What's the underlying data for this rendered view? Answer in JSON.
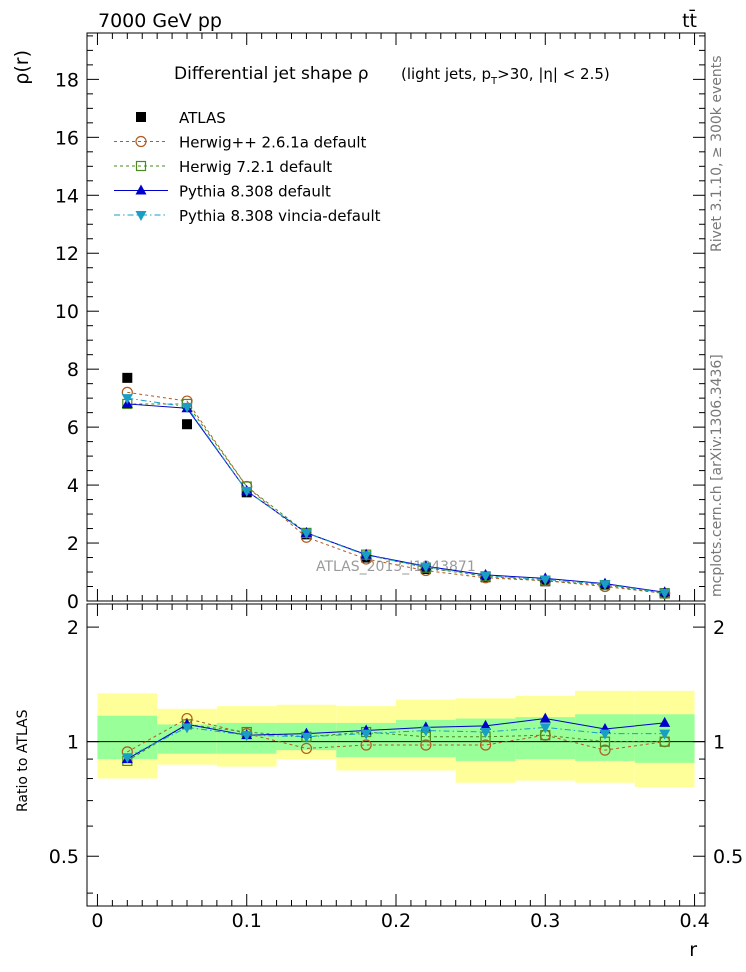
{
  "header": {
    "left": "7000 GeV pp",
    "right": "tt̄"
  },
  "side_labels": {
    "rivet": "Rivet 3.1.10, ≥ 300k events",
    "mcplots": "mcplots.cern.ch [arXiv:1306.3436]"
  },
  "watermark": "ATLAS_2013_I1243871",
  "chart_data": [
    {
      "type": "scatter",
      "title": "Differential jet shape  ρ",
      "title_detail": "(light jets, p",
      "title_sub": "T",
      "title_detail2": ">30, |η| < 2.5)",
      "ylabel": "ρ(r)",
      "xlabel": "r",
      "xlim": [
        -0.007,
        0.407
      ],
      "ylim": [
        0,
        19.6
      ],
      "yticks": [
        0,
        2,
        4,
        6,
        8,
        10,
        12,
        14,
        16,
        18
      ],
      "ytick_labels": [
        "0",
        "2",
        "4",
        "6",
        "8",
        "10",
        "12",
        "14",
        "16",
        "18"
      ],
      "x": [
        0.02,
        0.06,
        0.1,
        0.14,
        0.18,
        0.22,
        0.26,
        0.3,
        0.34,
        0.38
      ],
      "legend_position": "top-left",
      "series": [
        {
          "name": "ATLAS",
          "color": "#000000",
          "marker": "square-filled",
          "line": "none",
          "values": [
            7.7,
            6.1,
            3.75,
            2.3,
            1.5,
            1.1,
            0.82,
            0.68,
            0.55,
            0.27
          ]
        },
        {
          "name": "Herwig++ 2.6.1a default",
          "color": "#b35a1f",
          "marker": "circle-open",
          "line": "dashed",
          "values": [
            7.2,
            6.9,
            3.95,
            2.2,
            1.45,
            1.05,
            0.8,
            0.7,
            0.5,
            0.26
          ]
        },
        {
          "name": "Herwig 7.2.1 default",
          "color": "#4a8a1e",
          "marker": "square-open",
          "line": "dashed",
          "values": [
            6.8,
            6.8,
            3.95,
            2.35,
            1.6,
            1.15,
            0.85,
            0.7,
            0.55,
            0.26
          ]
        },
        {
          "name": "Pythia 8.308 default",
          "color": "#0000cc",
          "marker": "triangle-up",
          "line": "solid",
          "values": [
            6.8,
            6.65,
            3.8,
            2.35,
            1.6,
            1.2,
            0.9,
            0.78,
            0.6,
            0.3
          ]
        },
        {
          "name": "Pythia 8.308 vincia-default",
          "color": "#1a9ec4",
          "marker": "triangle-down",
          "line": "dashdot",
          "values": [
            7.0,
            6.7,
            3.8,
            2.35,
            1.58,
            1.18,
            0.87,
            0.74,
            0.58,
            0.28
          ]
        }
      ]
    },
    {
      "type": "scatter",
      "ylabel": "Ratio to ATLAS",
      "xlabel": "r",
      "xlim": [
        -0.007,
        0.407
      ],
      "ylim": [
        0.37,
        2.3
      ],
      "yticks": [
        0.5,
        1,
        2
      ],
      "ytick_labels": [
        "0.5",
        "1",
        "2"
      ],
      "xticks": [
        0,
        0.1,
        0.2,
        0.3,
        0.4
      ],
      "xtick_labels": [
        "0",
        "0.1",
        "0.2",
        "0.3",
        "0.4"
      ],
      "bin_edges": [
        0,
        0.04,
        0.08,
        0.12,
        0.16,
        0.2,
        0.24,
        0.28,
        0.32,
        0.36,
        0.4
      ],
      "band_outer_low": [
        0.8,
        0.87,
        0.86,
        0.9,
        0.84,
        0.84,
        0.78,
        0.79,
        0.78,
        0.76
      ],
      "band_outer_high": [
        1.34,
        1.22,
        1.24,
        1.25,
        1.24,
        1.29,
        1.3,
        1.32,
        1.36,
        1.36
      ],
      "band_inner_low": [
        0.9,
        0.93,
        0.93,
        0.95,
        0.91,
        0.91,
        0.89,
        0.9,
        0.89,
        0.88
      ],
      "band_inner_high": [
        1.17,
        1.11,
        1.12,
        1.12,
        1.12,
        1.14,
        1.15,
        1.16,
        1.18,
        1.18
      ],
      "band_colors": {
        "outer": "#ffff99",
        "inner": "#99ff99"
      },
      "x": [
        0.02,
        0.06,
        0.1,
        0.14,
        0.18,
        0.22,
        0.26,
        0.3,
        0.34,
        0.38
      ],
      "series": [
        {
          "name": "Herwig++ 2.6.1a default",
          "color": "#b35a1f",
          "marker": "circle-open",
          "line": "dashed",
          "values": [
            0.94,
            1.15,
            1.05,
            0.96,
            0.98,
            0.98,
            0.98,
            1.04,
            0.95,
            1.0
          ]
        },
        {
          "name": "Herwig 7.2.1 default",
          "color": "#4a8a1e",
          "marker": "square-open",
          "line": "dashed",
          "values": [
            0.89,
            1.11,
            1.06,
            1.03,
            1.06,
            1.03,
            1.03,
            1.04,
            1.0,
            1.0
          ]
        },
        {
          "name": "Pythia 8.308 default",
          "color": "#0000cc",
          "marker": "triangle-up",
          "line": "solid",
          "values": [
            0.9,
            1.11,
            1.04,
            1.05,
            1.07,
            1.09,
            1.1,
            1.15,
            1.08,
            1.12
          ]
        },
        {
          "name": "Pythia 8.308 vincia-default",
          "color": "#1a9ec4",
          "marker": "triangle-down",
          "line": "dashdot",
          "values": [
            0.91,
            1.09,
            1.04,
            1.03,
            1.05,
            1.07,
            1.06,
            1.09,
            1.05,
            1.05
          ]
        }
      ]
    }
  ]
}
